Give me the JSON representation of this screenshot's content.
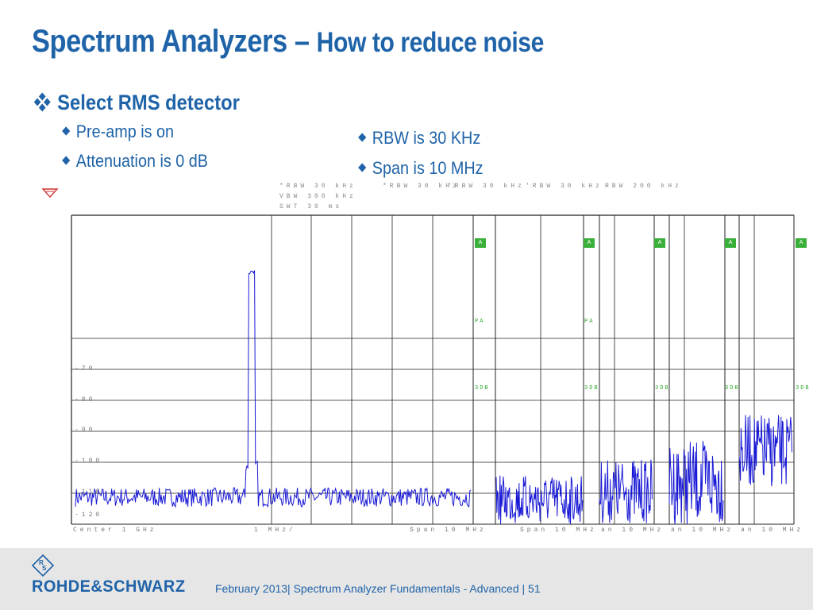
{
  "slide": {
    "title_part1": "Spectrum Analyzers – ",
    "title_part2": "How to reduce noise",
    "main_bullet": "Select RMS detector",
    "left_bullets": [
      "Pre-amp is on",
      "Attenuation is 0 dB"
    ],
    "right_bullets": [
      "RBW is 30 KHz",
      "Span is 10 MHz"
    ]
  },
  "analyzer": {
    "main_settings": [
      "*RBW 30 kHz",
      "VBW 300 kHz",
      "SWT 30 ms"
    ],
    "panel_rbw_labels": [
      "*RBW 30 kHz",
      "'RBW 30 kHz",
      "'RBW 30 kHz",
      "RBW 200 kHz"
    ],
    "y_ticks": [
      "-70",
      "-80",
      "-90",
      "-100",
      "-110",
      "-120"
    ],
    "bottom_center": "Center 1 GHz",
    "bottom_div": "1 MHz/",
    "bottom_span": "Span 10 MHz",
    "panel_bottom_labels": [
      "Span 10 MHz",
      "an 10 MHz",
      "an 10 MHz",
      "an 10 MHz"
    ],
    "marker_box": "A",
    "tag_pa": "PA",
    "tag_3db": "3DB",
    "trace_color": "#1a1ad6"
  },
  "footer": {
    "logo_text": "ROHDE&SCHWARZ",
    "caption": "February 2013| Spectrum Analyzer Fundamentals - Advanced | 51"
  }
}
